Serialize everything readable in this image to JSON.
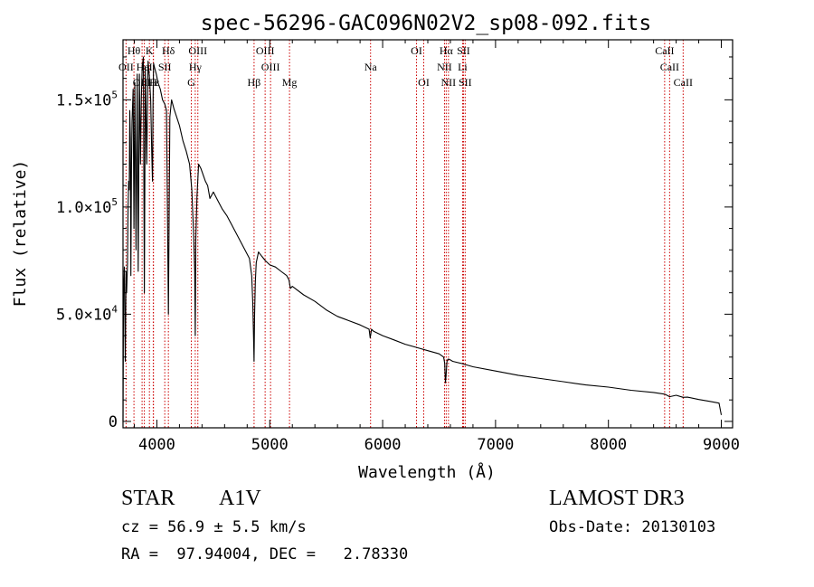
{
  "chart_data": {
    "type": "line",
    "title": "spec-56296-GAC096N02V2_sp08-092.fits",
    "xlabel": "Wavelength (Å)",
    "ylabel": "Flux (relative)",
    "xlim": [
      3700,
      9100
    ],
    "ylim": [
      -3000,
      178000
    ],
    "x_ticks": [
      4000,
      5000,
      6000,
      7000,
      8000,
      9000
    ],
    "x_tick_labels": [
      "4000",
      "5000",
      "6000",
      "7000",
      "8000",
      "9000"
    ],
    "y_ticks": [
      0,
      50000,
      100000,
      150000
    ],
    "y_tick_labels": [
      {
        "mant": "0",
        "exp": ""
      },
      {
        "mant": "5.0×10",
        "exp": "4"
      },
      {
        "mant": "1.0×10",
        "exp": "5"
      },
      {
        "mant": "1.5×10",
        "exp": "5"
      }
    ],
    "series": [
      {
        "name": "flux",
        "x": [
          3700,
          3705,
          3712,
          3720,
          3727,
          3732,
          3740,
          3745,
          3750,
          3755,
          3760,
          3765,
          3770,
          3775,
          3780,
          3790,
          3797,
          3805,
          3815,
          3826,
          3835,
          3845,
          3855,
          3862,
          3870,
          3880,
          3889,
          3898,
          3910,
          3922,
          3935,
          3945,
          3955,
          3961,
          3966,
          3971,
          3980,
          3995,
          4010,
          4030,
          4050,
          4070,
          4085,
          4102,
          4115,
          4130,
          4150,
          4175,
          4200,
          4230,
          4260,
          4290,
          4310,
          4325,
          4335,
          4340,
          4345,
          4355,
          4370,
          4390,
          4410,
          4430,
          4450,
          4470,
          4500,
          4540,
          4580,
          4620,
          4660,
          4700,
          4740,
          4780,
          4820,
          4840,
          4850,
          4856,
          4861,
          4866,
          4872,
          4880,
          4900,
          4930,
          4960,
          5000,
          5050,
          5100,
          5150,
          5170,
          5183,
          5200,
          5300,
          5400,
          5500,
          5600,
          5700,
          5800,
          5880,
          5890,
          5896,
          5902,
          5920,
          6000,
          6100,
          6200,
          6300,
          6400,
          6500,
          6540,
          6550,
          6556,
          6563,
          6570,
          6578,
          6590,
          6620,
          6700,
          6800,
          7000,
          7200,
          7400,
          7600,
          7800,
          8000,
          8200,
          8400,
          8500,
          8542,
          8600,
          8662,
          8700,
          8800,
          8900,
          8980,
          9000
        ],
        "y": [
          0,
          60000,
          72000,
          28000,
          70000,
          60000,
          74000,
          100000,
          112000,
          108000,
          145000,
          132000,
          68000,
          120000,
          140000,
          155000,
          90000,
          158000,
          80000,
          162000,
          70000,
          162000,
          120000,
          150000,
          165000,
          170000,
          60000,
          165000,
          120000,
          168000,
          160000,
          150000,
          125000,
          112000,
          148000,
          167000,
          165000,
          162000,
          158000,
          155000,
          150000,
          148000,
          145000,
          50000,
          142000,
          150000,
          146000,
          142000,
          138000,
          131000,
          126000,
          120000,
          108000,
          88000,
          70000,
          40000,
          85000,
          105000,
          120000,
          118000,
          115000,
          112000,
          110000,
          104000,
          107000,
          103000,
          99000,
          96000,
          92000,
          88000,
          84000,
          80000,
          76000,
          68000,
          55000,
          40000,
          28000,
          50000,
          65000,
          74000,
          79000,
          77000,
          75000,
          73000,
          72000,
          70000,
          68000,
          66000,
          62000,
          63000,
          59000,
          56000,
          52000,
          49000,
          47000,
          45000,
          43000,
          39000,
          41000,
          43000,
          42000,
          40000,
          38000,
          36000,
          34500,
          33000,
          31500,
          30000,
          27000,
          18000,
          22000,
          28000,
          29000,
          29000,
          28000,
          27000,
          25500,
          23500,
          21500,
          20000,
          18500,
          17000,
          16000,
          14500,
          13500,
          12700,
          11500,
          12200,
          11200,
          11300,
          10200,
          9300,
          8500,
          3000
        ]
      }
    ],
    "lines": [
      {
        "label": "Hθ",
        "wl": 3797,
        "row": 0
      },
      {
        "label": "K",
        "wl": 3934,
        "row": 0
      },
      {
        "label": "Hδ",
        "wl": 4102,
        "row": 0
      },
      {
        "label": "OIII",
        "wl": 4363,
        "row": 0
      },
      {
        "label": "OIII",
        "wl": 4959,
        "row": 0
      },
      {
        "label": "OI",
        "wl": 6300,
        "row": 0
      },
      {
        "label": "Hα",
        "wl": 6563,
        "row": 0
      },
      {
        "label": "SII",
        "wl": 6716,
        "row": 0
      },
      {
        "label": "CaII",
        "wl": 8498,
        "row": 0
      },
      {
        "label": "OII",
        "wl": 3727,
        "row": 1
      },
      {
        "label": "HeI",
        "wl": 3889,
        "row": 1
      },
      {
        "label": "SII",
        "wl": 4070,
        "row": 1
      },
      {
        "label": "Hγ",
        "wl": 4340,
        "row": 1
      },
      {
        "label": "OIII",
        "wl": 5007,
        "row": 1
      },
      {
        "label": "Na",
        "wl": 5893,
        "row": 1
      },
      {
        "label": "NII",
        "wl": 6548,
        "row": 1
      },
      {
        "label": "Li",
        "wl": 6708,
        "row": 1
      },
      {
        "label": "CaII",
        "wl": 8542,
        "row": 1
      },
      {
        "label": "OIII",
        "wl": 3869,
        "row": 2
      },
      {
        "label": "Hε",
        "wl": 3970,
        "row": 2
      },
      {
        "label": "H",
        "wl": 3968,
        "row": 2
      },
      {
        "label": "G",
        "wl": 4305,
        "row": 2
      },
      {
        "label": "Hβ",
        "wl": 4861,
        "row": 2
      },
      {
        "label": "Mg",
        "wl": 5175,
        "row": 2
      },
      {
        "label": "OI",
        "wl": 6364,
        "row": 2
      },
      {
        "label": "NII",
        "wl": 6583,
        "row": 2
      },
      {
        "label": "SII",
        "wl": 6731,
        "row": 2
      },
      {
        "label": "CaII",
        "wl": 8662,
        "row": 2
      }
    ]
  },
  "info": {
    "object_class": "STAR",
    "subclass": "A1V",
    "survey": "LAMOST DR3",
    "cz": "cz = 56.9 ± 5.5 km/s",
    "obs_date": "Obs-Date: 20130103",
    "coords": "RA =  97.94004, DEC =   2.78330"
  }
}
